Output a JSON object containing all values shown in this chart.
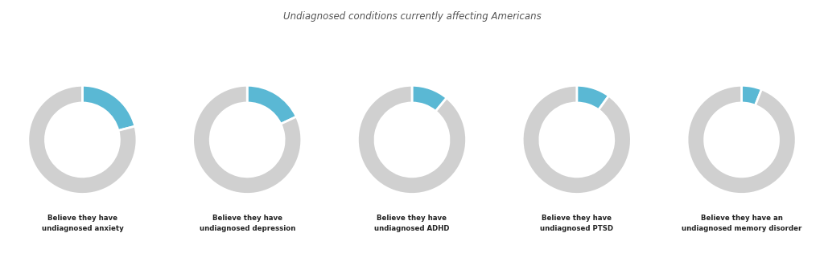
{
  "title": "Undiagnosed conditions currently affecting Americans",
  "title_fontsize": 8.5,
  "title_color": "#555555",
  "background_color": "#ffffff",
  "donut_gray": "#d0d0d0",
  "donut_blue": "#5ab8d4",
  "charts": [
    {
      "blue_pct": 21,
      "label": "Believe they have\nundiagnosed anxiety"
    },
    {
      "blue_pct": 18,
      "label": "Believe they have\nundiagnosed depression"
    },
    {
      "blue_pct": 11,
      "label": "Believe they have\nundiagnosed ADHD"
    },
    {
      "blue_pct": 10,
      "label": "Believe they have\nundiagnosed PTSD"
    },
    {
      "blue_pct": 6,
      "label": "Believe they have an\nundiagnosed memory disorder"
    }
  ]
}
